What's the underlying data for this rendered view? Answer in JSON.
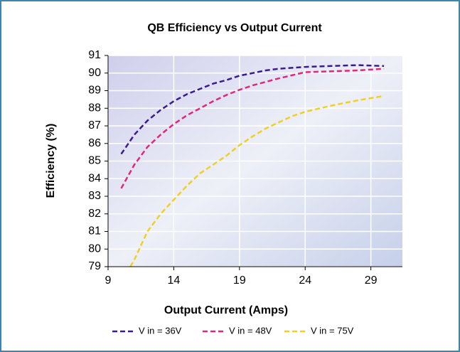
{
  "chart_data": {
    "type": "line",
    "title": "QB Efficiency vs Output Current",
    "x_label": "Output Current (Amps)",
    "y_label": "Efficiency (%)",
    "xlim": [
      9,
      31.4
    ],
    "ylim": [
      79,
      91
    ],
    "xticks": [
      9,
      14,
      19,
      24,
      29
    ],
    "yticks": [
      79,
      80,
      81,
      82,
      83,
      84,
      85,
      86,
      87,
      88,
      89,
      90,
      91
    ],
    "grid": true,
    "legend": "bottom",
    "series": [
      {
        "name": "V in = 36V",
        "color": "#3b1c8c",
        "x": [
          10,
          11,
          12,
          13,
          14,
          15,
          16,
          17,
          18,
          19,
          20,
          21,
          22,
          24,
          26,
          28,
          30
        ],
        "values": [
          85.4,
          86.5,
          87.3,
          87.9,
          88.4,
          88.8,
          89.1,
          89.4,
          89.6,
          89.85,
          90.0,
          90.15,
          90.25,
          90.35,
          90.4,
          90.45,
          90.4
        ]
      },
      {
        "name": "V in = 48V",
        "color": "#e0287a",
        "x": [
          10,
          11,
          12,
          13,
          14,
          15,
          16,
          17,
          18,
          19,
          20,
          22,
          24,
          26,
          28,
          30
        ],
        "values": [
          83.45,
          84.8,
          85.8,
          86.5,
          87.1,
          87.6,
          88.0,
          88.4,
          88.75,
          89.05,
          89.3,
          89.7,
          90.05,
          90.1,
          90.15,
          90.25
        ]
      },
      {
        "name": "V in = 75V",
        "color": "#f0d020",
        "x": [
          10.7,
          11,
          12,
          13,
          14,
          15,
          16,
          17,
          18,
          19,
          20,
          21,
          22,
          23,
          24,
          26,
          28,
          30
        ],
        "values": [
          79,
          79.4,
          81.0,
          82.0,
          82.8,
          83.6,
          84.3,
          84.8,
          85.3,
          85.9,
          86.4,
          86.85,
          87.2,
          87.55,
          87.8,
          88.15,
          88.45,
          88.7
        ]
      }
    ]
  }
}
